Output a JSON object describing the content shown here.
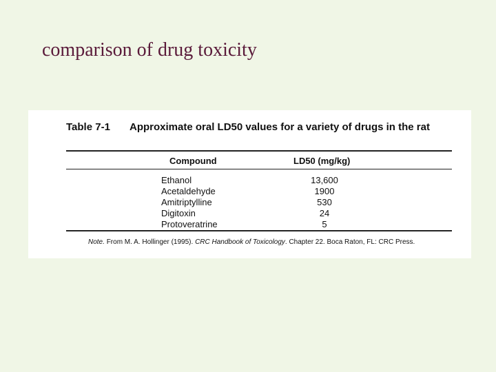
{
  "slide": {
    "title": "comparison of drug toxicity"
  },
  "table": {
    "label": "Table 7-1",
    "caption": "Approximate oral LD50 values for a variety of drugs in the rat",
    "columns": {
      "compound": "Compound",
      "ld50": "LD50 (mg/kg)"
    },
    "rows": [
      {
        "compound": "Ethanol",
        "ld50": "13,600"
      },
      {
        "compound": "Acetaldehyde",
        "ld50": "1900"
      },
      {
        "compound": "Amitriptylline",
        "ld50": "530"
      },
      {
        "compound": "Digitoxin",
        "ld50": "24"
      },
      {
        "compound": "Protoveratrine",
        "ld50": "5"
      }
    ],
    "note": {
      "label": "Note.",
      "prefix": "From M. A. Hollinger (1995).",
      "source_title": "CRC Handbook of Toxicology",
      "suffix": ". Chapter 22. Boca Raton, FL: CRC Press."
    }
  }
}
